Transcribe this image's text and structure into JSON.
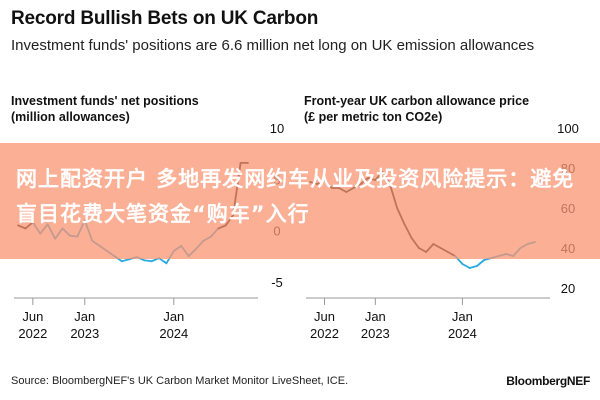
{
  "header": {
    "title": "Record Bullish Bets on UK Carbon",
    "subtitle": "Investment funds' positions are 6.6 million net long on UK emission allowances"
  },
  "overlay": {
    "banner_text": "网上配资开户 多地再发网约车从业及投资风险提示：避免盲目花费大笔资金“购车”入行",
    "banner_color": "#f9977a"
  },
  "footer": {
    "source": "Source: BloombergNEF's UK Carbon Market Monitor LiveSheet, ICE.",
    "brand": "BloombergNEF"
  },
  "colors": {
    "series_black": "#111111",
    "series_blue": "#2aa8e0"
  },
  "chart_data": [
    {
      "type": "line",
      "title": "Investment funds' net positions (million allowances)",
      "x_ticks": [
        "Jun 2022",
        "Jan 2023",
        "Jan 2024"
      ],
      "y_ticks": [
        10,
        5,
        0,
        -5
      ],
      "ylim": [
        -6,
        10
      ],
      "xlim": [
        "2022-04",
        "2024-11"
      ],
      "grid": false,
      "x": [
        "2022-04",
        "2022-05",
        "2022-06",
        "2022-07",
        "2022-08",
        "2022-09",
        "2022-10",
        "2022-11",
        "2022-12",
        "2023-01",
        "2023-02",
        "2023-03",
        "2023-04",
        "2023-05",
        "2023-06",
        "2023-07",
        "2023-08",
        "2023-09",
        "2023-10",
        "2023-11",
        "2023-12",
        "2024-01",
        "2024-02",
        "2024-03",
        "2024-04",
        "2024-05",
        "2024-06",
        "2024-07",
        "2024-08",
        "2024-09",
        "2024-10",
        "2024-11"
      ],
      "y": [
        0.5,
        0.2,
        0.8,
        -0.3,
        0.6,
        -0.8,
        0.2,
        -0.5,
        -0.6,
        1.0,
        -1.0,
        -1.5,
        -2.0,
        -2.5,
        -3.0,
        -2.8,
        -2.6,
        -2.9,
        -3.0,
        -2.7,
        -3.2,
        -2.0,
        -1.5,
        -2.5,
        -1.8,
        -1.0,
        -0.6,
        0.2,
        0.5,
        1.5,
        6.6,
        6.6
      ],
      "color_rule": "black when >= 0, blue when < 0"
    },
    {
      "type": "line",
      "title": "Front-year UK carbon allowance price (£ per metric ton CO2e)",
      "x_ticks": [
        "Jun 2022",
        "Jan 2023",
        "Jan 2024"
      ],
      "y_ticks": [
        100,
        80,
        60,
        40,
        20
      ],
      "ylim": [
        20,
        100
      ],
      "xlim": [
        "2022-04",
        "2024-11"
      ],
      "grid": false,
      "x": [
        "2022-04",
        "2022-05",
        "2022-06",
        "2022-07",
        "2022-08",
        "2022-09",
        "2022-10",
        "2022-11",
        "2022-12",
        "2023-01",
        "2023-02",
        "2023-03",
        "2023-04",
        "2023-05",
        "2023-06",
        "2023-07",
        "2023-08",
        "2023-09",
        "2023-10",
        "2023-11",
        "2023-12",
        "2024-01",
        "2024-02",
        "2024-03",
        "2024-04",
        "2024-05",
        "2024-06",
        "2024-07",
        "2024-08",
        "2024-09",
        "2024-10",
        "2024-11"
      ],
      "y": [
        73,
        72,
        74,
        70,
        70,
        68,
        70,
        72,
        75,
        74,
        78,
        72,
        60,
        52,
        45,
        40,
        38,
        42,
        40,
        38,
        36,
        32,
        30,
        31,
        34,
        35,
        36,
        37,
        36,
        40,
        42,
        43
      ],
      "color_rule": "black before 2023-12, blue after"
    }
  ]
}
